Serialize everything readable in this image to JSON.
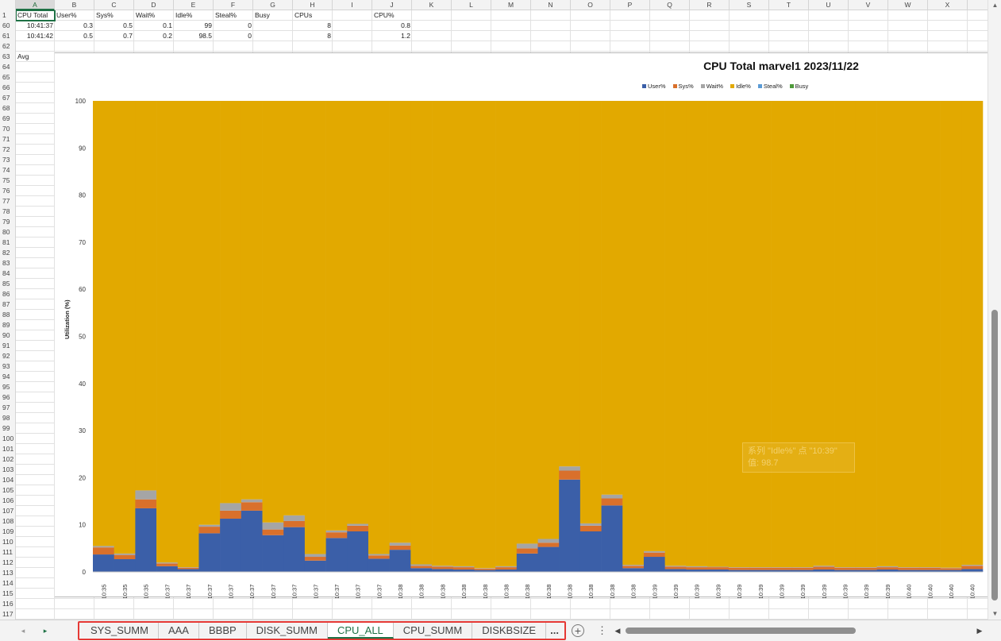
{
  "columns": [
    "A",
    "B",
    "C",
    "D",
    "E",
    "F",
    "G",
    "H",
    "I",
    "J",
    "K",
    "L",
    "M",
    "N",
    "O",
    "P",
    "Q",
    "R",
    "S",
    "T",
    "U",
    "V",
    "W",
    "X"
  ],
  "selected_column": "A",
  "rows": [
    "1",
    "60",
    "61",
    "62",
    "63",
    "64",
    "65",
    "66",
    "67",
    "68",
    "69",
    "70",
    "71",
    "72",
    "73",
    "74",
    "75",
    "76",
    "77",
    "78",
    "79",
    "80",
    "81",
    "82",
    "83",
    "84",
    "85",
    "86",
    "87",
    "88",
    "89",
    "90",
    "91",
    "92",
    "93",
    "94",
    "95",
    "96",
    "97",
    "98",
    "99",
    "100",
    "101",
    "102",
    "103",
    "104",
    "105",
    "106",
    "107",
    "108",
    "109",
    "110",
    "111",
    "112",
    "113",
    "114",
    "115",
    "116",
    "117"
  ],
  "sheet_cells": {
    "header": [
      "CPU Total",
      "User%",
      "Sys%",
      "Wait%",
      "Idle%",
      "Steal%",
      "Busy",
      "CPUs",
      "",
      "CPU%"
    ],
    "row60": [
      "10:41:37",
      "0.3",
      "0.5",
      "0.1",
      "99",
      "0",
      "",
      "8",
      "",
      "0.8"
    ],
    "row61": [
      "10:41:42",
      "0.5",
      "0.7",
      "0.2",
      "98.5",
      "0",
      "",
      "8",
      "",
      "1.2"
    ],
    "row63_label": "Avg"
  },
  "chart_data": {
    "type": "bar",
    "stacked": true,
    "title": "CPU Total marvel1  2023/11/22",
    "ylabel": "Utilization (%)",
    "xlabel": "",
    "ylim": [
      0,
      100
    ],
    "yticks": [
      "0",
      "10",
      "20",
      "30",
      "40",
      "50",
      "60",
      "70",
      "80",
      "90",
      "100"
    ],
    "categories": [
      "10:35",
      "10:35",
      "10:35",
      "10:37",
      "10:37",
      "10:37",
      "10:37",
      "10:37",
      "10:37",
      "10:37",
      "10:37",
      "10:37",
      "10:37",
      "10:37",
      "10:38",
      "10:38",
      "10:38",
      "10:38",
      "10:38",
      "10:38",
      "10:38",
      "10:38",
      "10:38",
      "10:38",
      "10:38",
      "10:38",
      "10:39",
      "10:39",
      "10:39",
      "10:39",
      "10:39",
      "10:39",
      "10:39",
      "10:39",
      "10:39",
      "10:39",
      "10:39",
      "10:39",
      "10:40",
      "10:40",
      "10:40",
      "10:40"
    ],
    "legend_position": "top",
    "series": [
      {
        "name": "User%",
        "color": "#3b5fa8",
        "values": [
          3.7,
          2.7,
          13.5,
          1.2,
          0.6,
          8.2,
          11.3,
          13.0,
          7.8,
          9.5,
          2.4,
          7.2,
          8.6,
          2.8,
          4.7,
          0.8,
          0.6,
          0.5,
          0.4,
          0.5,
          3.9,
          5.3,
          19.6,
          8.6,
          14.1,
          0.8,
          3.2,
          0.6,
          0.5,
          0.5,
          0.4,
          0.4,
          0.4,
          0.4,
          0.5,
          0.4,
          0.4,
          0.5,
          0.4,
          0.4,
          0.4,
          0.6
        ]
      },
      {
        "name": "Sys%",
        "color": "#d9702b",
        "values": [
          1.5,
          0.9,
          1.9,
          0.6,
          0.3,
          1.4,
          1.7,
          1.8,
          1.2,
          1.3,
          0.8,
          1.2,
          1.2,
          0.7,
          0.9,
          0.5,
          0.5,
          0.5,
          0.3,
          0.5,
          1.1,
          0.9,
          1.9,
          1.2,
          1.5,
          0.5,
          0.9,
          0.5,
          0.5,
          0.5,
          0.5,
          0.5,
          0.5,
          0.5,
          0.6,
          0.5,
          0.5,
          0.5,
          0.5,
          0.5,
          0.4,
          0.7
        ]
      },
      {
        "name": "Wait%",
        "color": "#a5a5a5",
        "values": [
          0.3,
          0.3,
          1.9,
          0.2,
          0.1,
          0.4,
          1.6,
          0.6,
          1.5,
          1.2,
          0.6,
          0.4,
          0.4,
          0.3,
          0.6,
          0.3,
          0.2,
          0.2,
          0.1,
          0.2,
          1.0,
          0.8,
          0.9,
          0.5,
          0.8,
          0.2,
          0.3,
          0.2,
          0.2,
          0.1,
          0.1,
          0.1,
          0.1,
          0.1,
          0.2,
          0.1,
          0.1,
          0.2,
          0.1,
          0.1,
          0.1,
          0.2
        ]
      },
      {
        "name": "Idle%",
        "color": "#e2a900",
        "values": [
          94.5,
          96.1,
          82.7,
          98.0,
          99.0,
          90.0,
          85.4,
          84.6,
          89.5,
          88.0,
          96.2,
          91.2,
          89.8,
          96.2,
          93.8,
          98.4,
          98.7,
          98.8,
          99.2,
          98.8,
          94.0,
          93.0,
          77.6,
          89.7,
          83.6,
          98.5,
          95.6,
          98.7,
          98.8,
          98.9,
          99.0,
          99.0,
          99.0,
          99.0,
          98.7,
          99.0,
          99.0,
          98.8,
          99.0,
          99.0,
          99.1,
          98.5
        ]
      },
      {
        "name": "Steal%",
        "color": "#5b9bd5",
        "values": [
          0,
          0,
          0,
          0,
          0,
          0,
          0,
          0,
          0,
          0,
          0,
          0,
          0,
          0,
          0,
          0,
          0,
          0,
          0,
          0,
          0,
          0,
          0,
          0,
          0,
          0,
          0,
          0,
          0,
          0,
          0,
          0,
          0,
          0,
          0,
          0,
          0,
          0,
          0,
          0,
          0,
          0
        ]
      },
      {
        "name": "Busy",
        "color": "#4e9a3a",
        "values": [
          0,
          0,
          0,
          0,
          0,
          0,
          0,
          0,
          0,
          0,
          0,
          0,
          0,
          0,
          0,
          0,
          0,
          0,
          0,
          0,
          0,
          0,
          0,
          0,
          0,
          0,
          0,
          0,
          0,
          0,
          0,
          0,
          0,
          0,
          0,
          0,
          0,
          0,
          0,
          0,
          0,
          0
        ]
      }
    ]
  },
  "tooltip": {
    "line1": "系列 \"Idle%\" 点 \"10:39\"",
    "line2": "值: 98.7"
  },
  "sheet_tabs": [
    {
      "label": "SYS_SUMM",
      "active": false
    },
    {
      "label": "AAA",
      "active": false
    },
    {
      "label": "BBBP",
      "active": false
    },
    {
      "label": "DISK_SUMM",
      "active": false
    },
    {
      "label": "CPU_ALL",
      "active": true
    },
    {
      "label": "CPU_SUMM",
      "active": false
    },
    {
      "label": "DISKBSIZE",
      "active": false
    }
  ],
  "tabs_more_label": "...",
  "add_sheet_label": "+",
  "sheet_menu_label": "⋮",
  "nav": {
    "prev": "◂",
    "next": "▸"
  },
  "scroll": {
    "up": "▲",
    "down": "▼",
    "left": "◀",
    "right": "▶"
  }
}
